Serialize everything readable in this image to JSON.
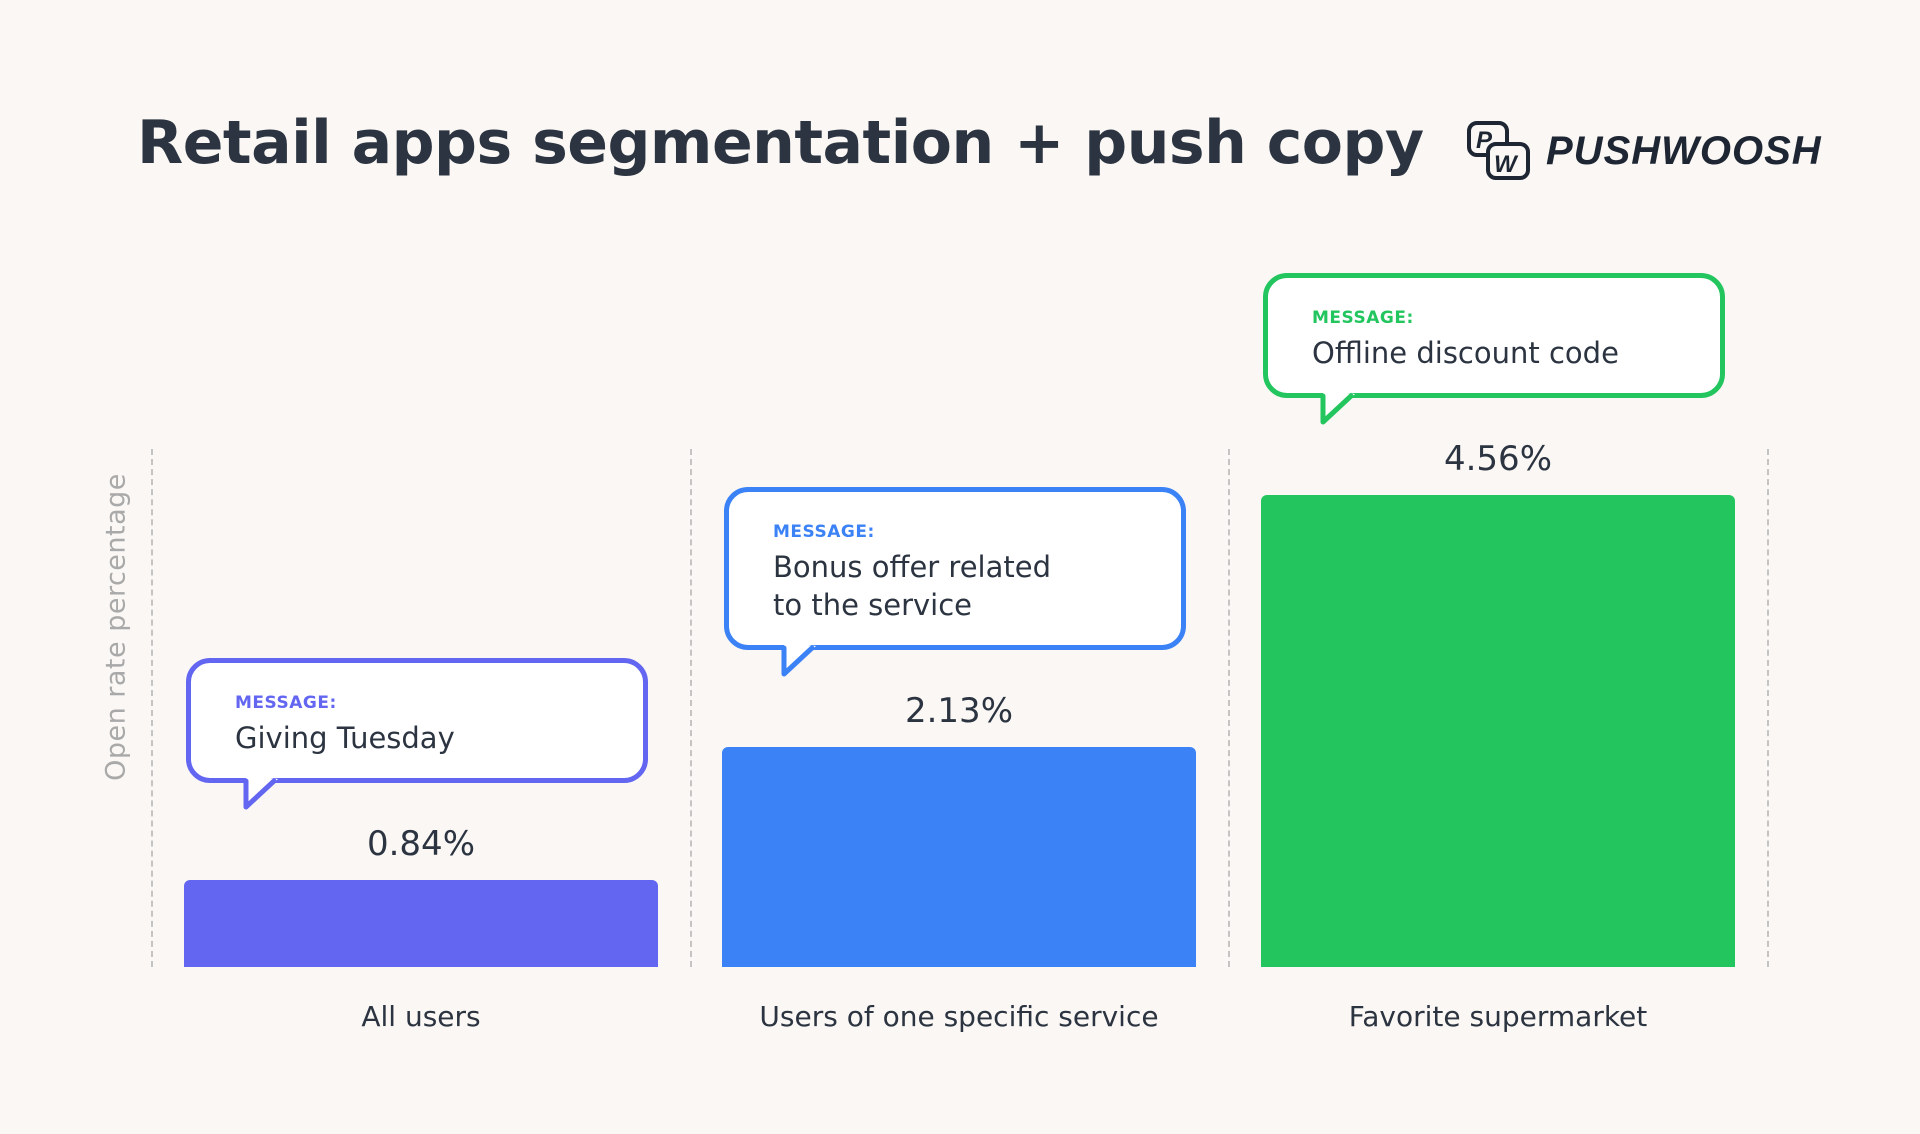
{
  "title": "Retail apps segmentation + push copy",
  "logo": {
    "text": "PUSHWOOSH",
    "mark": "PW"
  },
  "chart_data": {
    "type": "bar",
    "title": "Retail apps segmentation + push copy",
    "ylabel": "Open rate percentage",
    "xlabel": "",
    "categories": [
      "All users",
      "Users of one specific service",
      "Favorite supermarket"
    ],
    "values": [
      0.84,
      2.13,
      4.56
    ],
    "value_labels": [
      "0.84%",
      "2.13%",
      "4.56%"
    ],
    "colors": [
      "#6366f1",
      "#3b82f6",
      "#22c55e"
    ],
    "annotations": [
      {
        "label": "MESSAGE:",
        "text": "Giving Tuesday"
      },
      {
        "label": "MESSAGE:",
        "text": "Bonus offer related\nto the service"
      },
      {
        "label": "MESSAGE:",
        "text": "Offline discount code"
      }
    ],
    "grid": "dashed vertical separators",
    "legend": "none"
  }
}
